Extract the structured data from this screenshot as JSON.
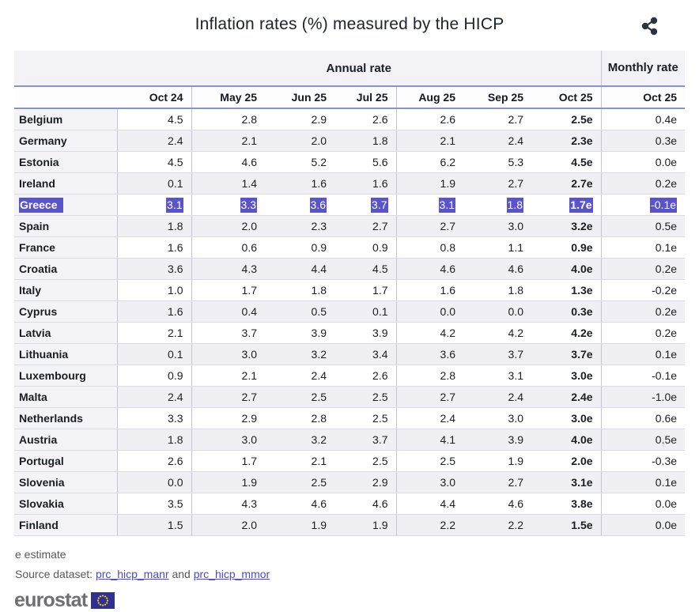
{
  "header": {
    "title": "Inflation rates (%) measured by the HICP",
    "share_icon": "share-icon"
  },
  "chart_data": {
    "type": "table",
    "title": "Inflation rates (%) measured by the HICP",
    "group_headers": {
      "annual": "Annual rate",
      "monthly": "Monthly rate"
    },
    "columns": [
      "Oct 24",
      "May 25",
      "Jun 25",
      "Jul 25",
      "Aug 25",
      "Sep 25",
      "Oct 25"
    ],
    "monthly_column": "Oct 25",
    "selected_row": "Greece",
    "rows": [
      {
        "country": "Belgium",
        "values": [
          "4.5",
          "2.8",
          "2.9",
          "2.6",
          "2.6",
          "2.7",
          "2.5e"
        ],
        "monthly": "0.4e",
        "selected": false
      },
      {
        "country": "Germany",
        "values": [
          "2.4",
          "2.1",
          "2.0",
          "1.8",
          "2.1",
          "2.4",
          "2.3e"
        ],
        "monthly": "0.3e",
        "selected": false
      },
      {
        "country": "Estonia",
        "values": [
          "4.5",
          "4.6",
          "5.2",
          "5.6",
          "6.2",
          "5.3",
          "4.5e"
        ],
        "monthly": "0.0e",
        "selected": false
      },
      {
        "country": "Ireland",
        "values": [
          "0.1",
          "1.4",
          "1.6",
          "1.6",
          "1.9",
          "2.7",
          "2.7e"
        ],
        "monthly": "0.2e",
        "selected": false
      },
      {
        "country": "Greece",
        "values": [
          "3.1",
          "3.3",
          "3.6",
          "3.7",
          "3.1",
          "1.8",
          "1.7e"
        ],
        "monthly": "-0.1e",
        "selected": true
      },
      {
        "country": "Spain",
        "values": [
          "1.8",
          "2.0",
          "2.3",
          "2.7",
          "2.7",
          "3.0",
          "3.2e"
        ],
        "monthly": "0.5e",
        "selected": false
      },
      {
        "country": "France",
        "values": [
          "1.6",
          "0.6",
          "0.9",
          "0.9",
          "0.8",
          "1.1",
          "0.9e"
        ],
        "monthly": "0.1e",
        "selected": false
      },
      {
        "country": "Croatia",
        "values": [
          "3.6",
          "4.3",
          "4.4",
          "4.5",
          "4.6",
          "4.6",
          "4.0e"
        ],
        "monthly": "0.2e",
        "selected": false
      },
      {
        "country": "Italy",
        "values": [
          "1.0",
          "1.7",
          "1.8",
          "1.7",
          "1.6",
          "1.8",
          "1.3e"
        ],
        "monthly": "-0.2e",
        "selected": false
      },
      {
        "country": "Cyprus",
        "values": [
          "1.6",
          "0.4",
          "0.5",
          "0.1",
          "0.0",
          "0.0",
          "0.3e"
        ],
        "monthly": "0.2e",
        "selected": false
      },
      {
        "country": "Latvia",
        "values": [
          "2.1",
          "3.7",
          "3.9",
          "3.9",
          "4.2",
          "4.2",
          "4.2e"
        ],
        "monthly": "0.2e",
        "selected": false
      },
      {
        "country": "Lithuania",
        "values": [
          "0.1",
          "3.0",
          "3.2",
          "3.4",
          "3.6",
          "3.7",
          "3.7e"
        ],
        "monthly": "0.1e",
        "selected": false
      },
      {
        "country": "Luxembourg",
        "values": [
          "0.9",
          "2.1",
          "2.4",
          "2.6",
          "2.8",
          "3.1",
          "3.0e"
        ],
        "monthly": "-0.1e",
        "selected": false
      },
      {
        "country": "Malta",
        "values": [
          "2.4",
          "2.7",
          "2.5",
          "2.5",
          "2.7",
          "2.4",
          "2.4e"
        ],
        "monthly": "-1.0e",
        "selected": false
      },
      {
        "country": "Netherlands",
        "values": [
          "3.3",
          "2.9",
          "2.8",
          "2.5",
          "2.4",
          "3.0",
          "3.0e"
        ],
        "monthly": "0.6e",
        "selected": false
      },
      {
        "country": "Austria",
        "values": [
          "1.8",
          "3.0",
          "3.2",
          "3.7",
          "4.1",
          "3.9",
          "4.0e"
        ],
        "monthly": "0.5e",
        "selected": false
      },
      {
        "country": "Portugal",
        "values": [
          "2.6",
          "1.7",
          "2.1",
          "2.5",
          "2.5",
          "1.9",
          "2.0e"
        ],
        "monthly": "-0.3e",
        "selected": false
      },
      {
        "country": "Slovenia",
        "values": [
          "0.0",
          "1.9",
          "2.5",
          "2.9",
          "3.0",
          "2.7",
          "3.1e"
        ],
        "monthly": "0.1e",
        "selected": false
      },
      {
        "country": "Slovakia",
        "values": [
          "3.5",
          "4.3",
          "4.6",
          "4.6",
          "4.4",
          "4.6",
          "3.8e"
        ],
        "monthly": "0.0e",
        "selected": false
      },
      {
        "country": "Finland",
        "values": [
          "1.5",
          "2.0",
          "1.9",
          "1.9",
          "2.2",
          "2.2",
          "1.5e"
        ],
        "monthly": "0.0e",
        "selected": false
      }
    ]
  },
  "footer": {
    "estimate_note": "e estimate",
    "source_label": "Source dataset:",
    "dataset_link_1": "prc_hicp_manr",
    "conjunction": "and",
    "dataset_link_2": "prc_hicp_mmor",
    "logo_text": "eurostat"
  },
  "icons": {
    "share": "share-icon",
    "eu_flag": "eu-flag-icon"
  },
  "colors": {
    "selection_highlight": "#5b53c8",
    "header_rule": "#8a90d4",
    "header_background": "#f2f2f7",
    "alt_row_background": "#f0f0f4",
    "label_column_background": "#f4f4f8",
    "link": "#4b49ce",
    "eu_flag_blue": "#2e3192",
    "eu_flag_stars": "#ffcc00",
    "share_icon": "#2c3440"
  }
}
